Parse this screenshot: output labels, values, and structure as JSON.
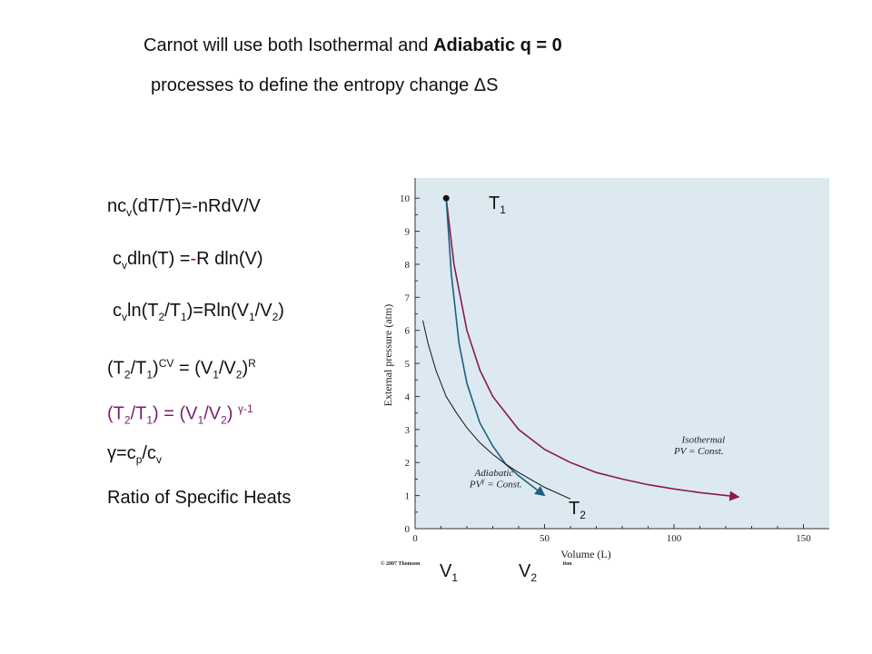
{
  "heading": {
    "line1_prefix": "Carnot will use both Isothermal and ",
    "line1_bold": "Adiabatic  q = 0",
    "line2": "processes to define the entropy change ",
    "delta_symbol": "Δ",
    "line2_suffix": "S"
  },
  "equations": {
    "eq1": {
      "a": "nc",
      "a_sub": "v",
      "b": "(dT/T)=-nRdV/V"
    },
    "eq2": {
      "a": "c",
      "a_sub": "v",
      "b": "dln(T) =",
      "dash": "-",
      "c": "R dln(V)"
    },
    "eq3": {
      "a": "c",
      "a_sub": "v",
      "b": "ln(T",
      "b_sub": "2",
      "c": "/T",
      "c_sub": "1",
      "d": ")=Rln(V",
      "d_sub": "1",
      "e": "/V",
      "e_sub": "2",
      "f": ")"
    },
    "eq4": {
      "a": "(T",
      "a_sub": "2",
      "b": "/T",
      "b_sub": "1",
      "c": ")",
      "c_sup": "CV",
      "d": " = (V",
      "d_sub": "1",
      "e": "/V",
      "e_sub": "2",
      "f": ")",
      "f_sup": "R"
    },
    "eq5": {
      "a": "(T",
      "a_sub": "2",
      "b": "/T",
      "b_sub": "1",
      "c": ") = (V",
      "c_sub": "1",
      "d": "/V",
      "d_sub": "2",
      "e": ") ",
      "e_sup": "γ-1"
    },
    "eq6": {
      "a": "γ=c",
      "a_sub": "p",
      "b": "/c",
      "b_sub": "v"
    },
    "ratio": "Ratio of Specific Heats"
  },
  "labels": {
    "T1": "T",
    "T1_sub": "1",
    "T2": "T",
    "T2_sub": "2",
    "V1": "V",
    "V1_sub": "1",
    "V2": "V",
    "V2_sub": "2"
  },
  "chart_data": {
    "type": "line",
    "xlabel": "Volume (L)",
    "ylabel": "External pressure (atm)",
    "xlim": [
      0,
      160
    ],
    "ylim": [
      0,
      10.5
    ],
    "xticks": [
      0,
      50,
      100,
      150
    ],
    "yticks": [
      0,
      1,
      2,
      3,
      4,
      5,
      6,
      7,
      8,
      9,
      10
    ],
    "grid": false,
    "background": "#dce9f1",
    "copyright": "© 2007 Thomson",
    "copyright_tail": "tion",
    "series": [
      {
        "name": "Isothermal",
        "annotation_line1": "Isothermal",
        "annotation_line2": "PV = Const.",
        "color": "#8b1a4a",
        "x": [
          12,
          15,
          20,
          25,
          30,
          40,
          50,
          60,
          70,
          80,
          90,
          100,
          110,
          125
        ],
        "y": [
          10,
          8.0,
          6.0,
          4.8,
          4.0,
          3.0,
          2.4,
          2.0,
          1.7,
          1.5,
          1.33,
          1.2,
          1.09,
          0.96
        ]
      },
      {
        "name": "Adiabatic",
        "annotation_line1": "Adiabatic",
        "annotation_line2": "PV",
        "annotation_sup": "γ",
        "annotation_line3": " = Const.",
        "color": "#1d5f80",
        "x": [
          12,
          14,
          17,
          20,
          25,
          30,
          35,
          40,
          45,
          50
        ],
        "y": [
          10,
          7.7,
          5.6,
          4.4,
          3.2,
          2.5,
          1.95,
          1.6,
          1.3,
          1.0
        ]
      },
      {
        "name": "",
        "color": "#111111",
        "x": [
          3,
          5,
          8,
          12,
          16,
          20,
          25,
          30,
          35,
          40,
          50,
          60
        ],
        "y": [
          6.3,
          5.6,
          4.8,
          4.0,
          3.5,
          3.05,
          2.6,
          2.25,
          1.95,
          1.7,
          1.25,
          0.9
        ]
      }
    ]
  }
}
